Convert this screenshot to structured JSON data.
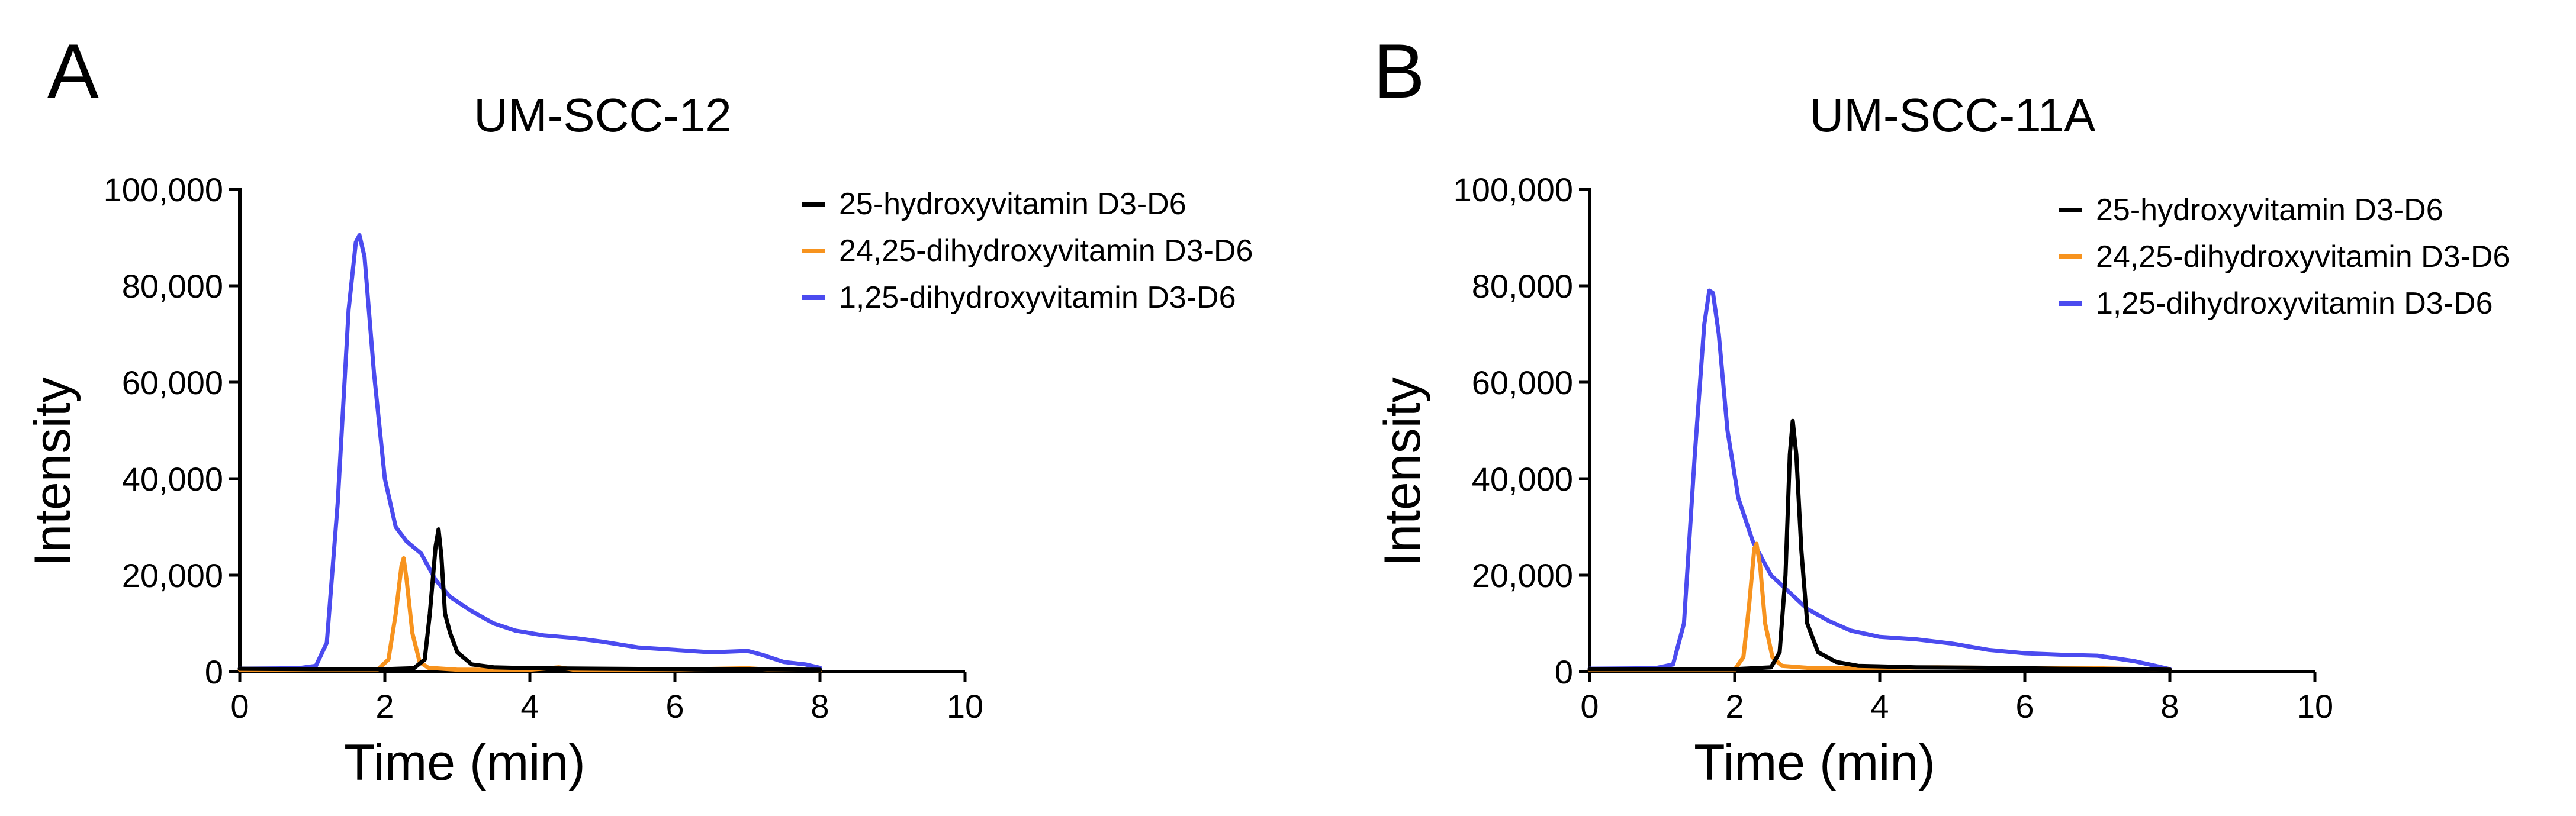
{
  "chart_data": [
    {
      "type": "line",
      "panel": "A",
      "title": "UM-SCC-12",
      "xlabel": "Time (min)",
      "ylabel": "Intensity",
      "xlim": [
        0,
        10
      ],
      "ylim": [
        0,
        100000
      ],
      "xticks": [
        0,
        2,
        4,
        6,
        8,
        10
      ],
      "xtick_labels": [
        "0",
        "2",
        "4",
        "6",
        "8",
        "10"
      ],
      "yticks": [
        0,
        20000,
        40000,
        60000,
        80000,
        100000
      ],
      "ytick_labels": [
        "0",
        "20,000",
        "40,000",
        "60,000",
        "80,000",
        "100,000"
      ],
      "legend_position": "top-right",
      "series": [
        {
          "name": "25-hydroxyvitamin D3-D6",
          "color": "#000000",
          "points": [
            [
              0,
              600
            ],
            [
              1,
              500
            ],
            [
              2,
              500
            ],
            [
              2.4,
              700
            ],
            [
              2.55,
              2500
            ],
            [
              2.62,
              12000
            ],
            [
              2.7,
              26000
            ],
            [
              2.74,
              29500
            ],
            [
              2.78,
              24000
            ],
            [
              2.83,
              12000
            ],
            [
              2.9,
              8000
            ],
            [
              3.0,
              4000
            ],
            [
              3.2,
              1500
            ],
            [
              3.5,
              900
            ],
            [
              4,
              700
            ],
            [
              5,
              600
            ],
            [
              6,
              500
            ],
            [
              7,
              500
            ],
            [
              8,
              400
            ]
          ]
        },
        {
          "name": "24,25-dihydroxyvitamin D3-D6",
          "color": "#f7931e",
          "points": [
            [
              0,
              400
            ],
            [
              1.9,
              400
            ],
            [
              2.05,
              2500
            ],
            [
              2.15,
              12000
            ],
            [
              2.23,
              22000
            ],
            [
              2.26,
              23500
            ],
            [
              2.3,
              19000
            ],
            [
              2.38,
              8000
            ],
            [
              2.48,
              2000
            ],
            [
              2.6,
              800
            ],
            [
              3.0,
              400
            ],
            [
              4.0,
              400
            ],
            [
              4.4,
              900
            ],
            [
              4.6,
              400
            ],
            [
              6,
              400
            ],
            [
              7,
              700
            ],
            [
              7.3,
              400
            ],
            [
              8,
              300
            ]
          ]
        },
        {
          "name": "1,25-dihydroxyvitamin D3-D6",
          "color": "#4b4bef",
          "points": [
            [
              0,
              600
            ],
            [
              0.8,
              700
            ],
            [
              1.05,
              1200
            ],
            [
              1.2,
              6000
            ],
            [
              1.35,
              35000
            ],
            [
              1.5,
              75000
            ],
            [
              1.6,
              89000
            ],
            [
              1.65,
              90500
            ],
            [
              1.72,
              86000
            ],
            [
              1.85,
              62000
            ],
            [
              2.0,
              40000
            ],
            [
              2.15,
              30000
            ],
            [
              2.3,
              27000
            ],
            [
              2.5,
              24500
            ],
            [
              2.7,
              19000
            ],
            [
              2.9,
              15500
            ],
            [
              3.2,
              12500
            ],
            [
              3.5,
              10000
            ],
            [
              3.8,
              8500
            ],
            [
              4.2,
              7500
            ],
            [
              4.6,
              7000
            ],
            [
              5.0,
              6200
            ],
            [
              5.5,
              5000
            ],
            [
              6.0,
              4500
            ],
            [
              6.5,
              4000
            ],
            [
              7.0,
              4300
            ],
            [
              7.2,
              3500
            ],
            [
              7.5,
              2000
            ],
            [
              7.8,
              1500
            ],
            [
              8.0,
              800
            ]
          ]
        }
      ]
    },
    {
      "type": "line",
      "panel": "B",
      "title": "UM-SCC-11A",
      "xlabel": "Time (min)",
      "ylabel": "Intensity",
      "xlim": [
        0,
        10
      ],
      "ylim": [
        0,
        100000
      ],
      "xticks": [
        0,
        2,
        4,
        6,
        8,
        10
      ],
      "xtick_labels": [
        "0",
        "2",
        "4",
        "6",
        "8",
        "10"
      ],
      "yticks": [
        0,
        20000,
        40000,
        60000,
        80000,
        100000
      ],
      "ytick_labels": [
        "0",
        "20,000",
        "40,000",
        "60,000",
        "80,000",
        "100,000"
      ],
      "legend_position": "top-right",
      "series": [
        {
          "name": "25-hydroxyvitamin D3-D6",
          "color": "#000000",
          "points": [
            [
              0,
              500
            ],
            [
              1,
              500
            ],
            [
              2,
              500
            ],
            [
              2.5,
              900
            ],
            [
              2.62,
              4000
            ],
            [
              2.7,
              20000
            ],
            [
              2.76,
              45000
            ],
            [
              2.8,
              52000
            ],
            [
              2.85,
              45000
            ],
            [
              2.92,
              25000
            ],
            [
              3.0,
              10000
            ],
            [
              3.15,
              4000
            ],
            [
              3.4,
              2000
            ],
            [
              3.7,
              1200
            ],
            [
              4.5,
              900
            ],
            [
              5.5,
              800
            ],
            [
              6.5,
              600
            ],
            [
              7.5,
              500
            ],
            [
              8,
              400
            ]
          ]
        },
        {
          "name": "24,25-dihydroxyvitamin D3-D6",
          "color": "#f7931e",
          "points": [
            [
              0,
              400
            ],
            [
              2.0,
              400
            ],
            [
              2.12,
              3000
            ],
            [
              2.2,
              14000
            ],
            [
              2.27,
              25500
            ],
            [
              2.3,
              26500
            ],
            [
              2.35,
              22000
            ],
            [
              2.42,
              10000
            ],
            [
              2.52,
              3000
            ],
            [
              2.65,
              1200
            ],
            [
              3.0,
              800
            ],
            [
              4.0,
              800
            ],
            [
              4.8,
              900
            ],
            [
              6.0,
              700
            ],
            [
              7.0,
              700
            ],
            [
              8,
              400
            ]
          ]
        },
        {
          "name": "1,25-dihydroxyvitamin D3-D6",
          "color": "#4b4bef",
          "points": [
            [
              0,
              600
            ],
            [
              0.9,
              700
            ],
            [
              1.15,
              1500
            ],
            [
              1.3,
              10000
            ],
            [
              1.45,
              45000
            ],
            [
              1.58,
              72000
            ],
            [
              1.65,
              79000
            ],
            [
              1.7,
              78500
            ],
            [
              1.78,
              70000
            ],
            [
              1.9,
              50000
            ],
            [
              2.05,
              36000
            ],
            [
              2.25,
              27000
            ],
            [
              2.5,
              20000
            ],
            [
              2.75,
              16500
            ],
            [
              3.0,
              13000
            ],
            [
              3.3,
              10500
            ],
            [
              3.6,
              8500
            ],
            [
              4.0,
              7200
            ],
            [
              4.5,
              6700
            ],
            [
              5.0,
              5800
            ],
            [
              5.5,
              4500
            ],
            [
              6.0,
              3800
            ],
            [
              6.5,
              3500
            ],
            [
              7.0,
              3300
            ],
            [
              7.5,
              2200
            ],
            [
              7.8,
              1200
            ],
            [
              8.0,
              500
            ]
          ]
        }
      ]
    }
  ]
}
